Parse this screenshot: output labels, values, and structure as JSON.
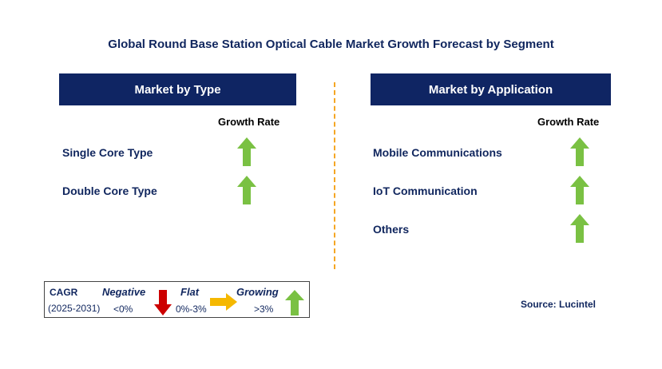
{
  "title": "Global Round Base Station Optical Cable Market Growth Forecast by Segment",
  "left_panel": {
    "header": "Market by Type",
    "growth_rate_label": "Growth Rate",
    "rows": [
      {
        "label": "Single Core Type",
        "trend": "growing"
      },
      {
        "label": "Double Core Type",
        "trend": "growing"
      }
    ]
  },
  "right_panel": {
    "header": "Market by Application",
    "growth_rate_label": "Growth Rate",
    "rows": [
      {
        "label": "Mobile Communications",
        "trend": "growing"
      },
      {
        "label": "IoT Communication",
        "trend": "growing"
      },
      {
        "label": "Others",
        "trend": "growing"
      }
    ]
  },
  "legend": {
    "cagr_label": "CAGR",
    "period": "(2025-2031)",
    "negative": {
      "label": "Negative",
      "range": "<0%"
    },
    "flat": {
      "label": "Flat",
      "range": "0%-3%"
    },
    "growing": {
      "label": "Growing",
      "range": ">3%"
    }
  },
  "source": "Source: Lucintel",
  "colors": {
    "header_bg": "#0f2563",
    "text_navy": "#10265e",
    "arrow_green": "#7ac143",
    "arrow_red": "#cc0000",
    "arrow_yellow": "#f5b800",
    "divider": "#f5a623"
  }
}
